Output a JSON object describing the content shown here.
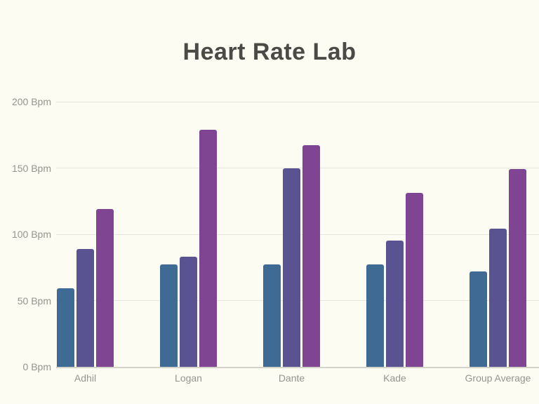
{
  "title": "Heart Rate Lab",
  "colors": {
    "background": "#FCFCF2",
    "gridline": "#E6E6DD",
    "axis_line": "#D3D3C9",
    "tick_text": "#95958F",
    "title_text": "#4A4A47",
    "series_blue": "#3F6A94",
    "series_indigo": "#5A5392",
    "series_purple": "#7F4492"
  },
  "chart_data": {
    "type": "bar",
    "title": "Heart Rate Lab",
    "categories": [
      "Adhil",
      "Logan",
      "Dante",
      "Kade",
      "Group Average"
    ],
    "series": [
      {
        "name": "series-1-blue",
        "color": "#3F6A94",
        "values": [
          59,
          77,
          77,
          77,
          72
        ]
      },
      {
        "name": "series-2-indigo",
        "color": "#5A5392",
        "values": [
          89,
          83,
          150,
          95,
          104
        ]
      },
      {
        "name": "series-3-purple",
        "color": "#7F4492",
        "values": [
          119,
          179,
          167,
          131,
          149
        ]
      }
    ],
    "yticks": [
      0,
      50,
      100,
      150,
      200
    ],
    "ytick_labels": [
      "0 Bpm",
      "50 Bpm",
      "100 Bpm",
      "150 Bpm",
      "200 Bpm"
    ],
    "ylim": [
      0,
      200
    ],
    "xlabel": "",
    "ylabel": "",
    "grid": true,
    "legend": "none"
  }
}
